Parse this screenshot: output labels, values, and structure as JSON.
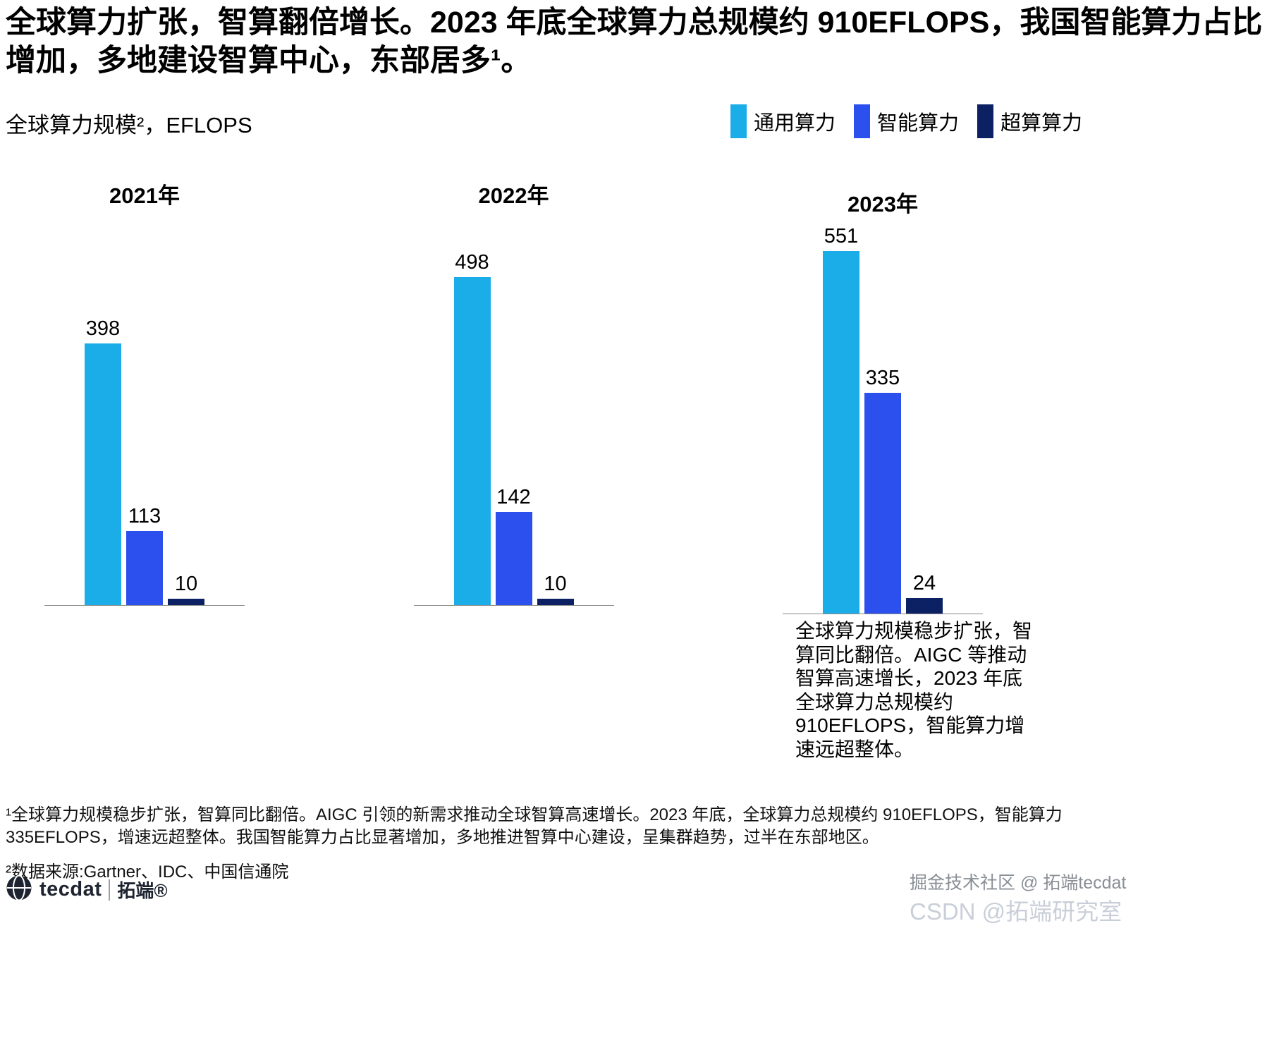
{
  "page": {
    "title": "全球算力扩张，智算翻倍增长。2023 年底全球算力总规模约 910EFLOPS，我国智能算力占比增加，多地建设智算中心，东部居多¹。",
    "subtitle": "全球算力规模²，EFLOPS"
  },
  "chart_data": {
    "type": "bar",
    "title": "全球算力规模²，EFLOPS",
    "unit": "EFLOPS",
    "grid": false,
    "legend_position": "top-right",
    "value_labels": true,
    "ylim": [
      0,
      560
    ],
    "categories": [
      "2021年",
      "2022年",
      "2023年"
    ],
    "series": [
      {
        "name": "通用算力",
        "color": "#1aade8",
        "values": [
          398,
          498,
          551
        ]
      },
      {
        "name": "智能算力",
        "color": "#2c50ee",
        "values": [
          113,
          142,
          335
        ]
      },
      {
        "name": "超算算力",
        "color": "#0b2163",
        "values": [
          10,
          10,
          24
        ]
      }
    ]
  },
  "annotation": {
    "text": "全球算力规模稳步扩张，智算同比翻倍。AIGC 等推动智算高速增长，2023 年底全球算力总规模约 910EFLOPS，智能算力增速远超整体。"
  },
  "footnotes": {
    "note1": "¹全球算力规模稳步扩张，智算同比翻倍。AIGC 引领的新需求推动全球智算高速增长。2023 年底，全球算力总规模约 910EFLOPS，智能算力 335EFLOPS，增速远超整体。我国智能算力占比显著增加，多地推进智算中心建设，呈集群趋势，过半在东部地区。",
    "note2": "²数据来源:Gartner、IDC、中国信通院"
  },
  "footer": {
    "logo_text": "tecdat",
    "logo_suffix": "拓端®"
  },
  "watermark": {
    "line1": "掘金技术社区 @ 拓端tecdat",
    "line2": "CSDN @拓端研究室"
  }
}
